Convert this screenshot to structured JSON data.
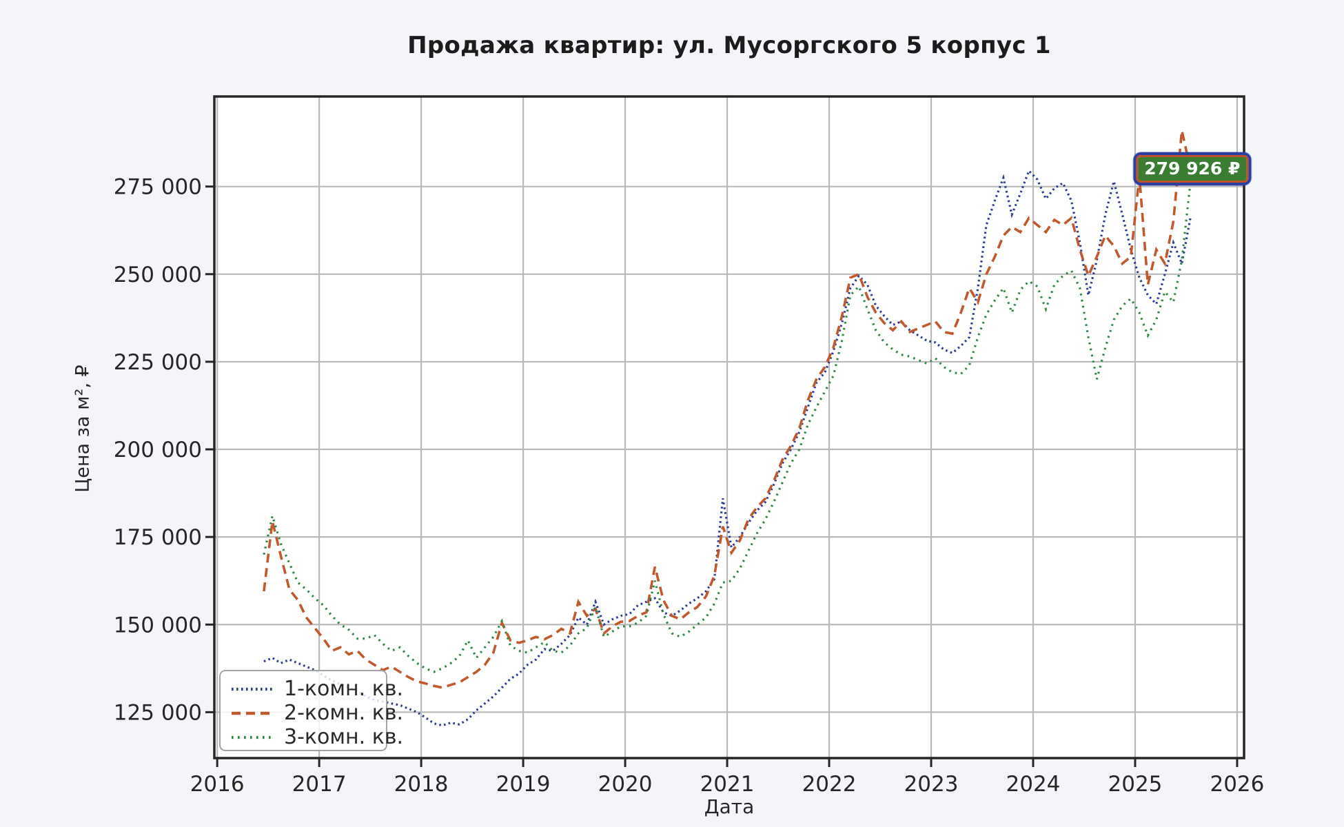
{
  "figure": {
    "background": "#f4f5f9",
    "plot_background": "#ffffff",
    "grid_color": "#b9b9b9",
    "spine_color": "#262626",
    "tick_text_color": "#262626"
  },
  "chart_data": {
    "type": "line",
    "title": "Продажа квартир: ул. Мусоргского 5 корпус 1",
    "xlabel": "Дата",
    "ylabel": "Цена за м², ₽",
    "grid": true,
    "legend_position": "lower-left",
    "xlim": [
      2015.972,
      2026.068
    ],
    "ylim": [
      111900,
      300700
    ],
    "x_ticks": [
      2016,
      2017,
      2018,
      2019,
      2020,
      2021,
      2022,
      2023,
      2024,
      2025,
      2026
    ],
    "y_ticks": [
      125000,
      150000,
      175000,
      200000,
      225000,
      250000,
      275000
    ],
    "y_tick_labels": [
      "125 000",
      "150 000",
      "175 000",
      "200 000",
      "225 000",
      "250 000",
      "275 000"
    ],
    "x_start": 2016.458,
    "x_step": 0.0833333,
    "series": [
      {
        "name": "1-комн. кв.",
        "color": "#2c3e94",
        "style": "dotted",
        "dash": "2.6 4.4",
        "width": 3.2,
        "values": [
          139500,
          140500,
          139000,
          140000,
          139000,
          138000,
          137000,
          135500,
          134000,
          133000,
          132000,
          131000,
          129500,
          128500,
          128000,
          127500,
          127000,
          126000,
          125000,
          123500,
          121800,
          121200,
          122000,
          121500,
          123000,
          125500,
          127500,
          129500,
          132000,
          134500,
          136000,
          138500,
          140000,
          143000,
          142500,
          144500,
          147000,
          152000,
          150000,
          156500,
          150000,
          151500,
          152500,
          153000,
          155500,
          156500,
          157500,
          153500,
          152500,
          154000,
          156000,
          157500,
          159500,
          163000,
          186000,
          172000,
          175000,
          179000,
          182500,
          185000,
          190000,
          196000,
          200000,
          205000,
          212000,
          219000,
          222000,
          228000,
          236000,
          246000,
          249500,
          247000,
          241000,
          238000,
          235500,
          236500,
          234000,
          232500,
          231000,
          230500,
          228500,
          227500,
          229500,
          232000,
          246000,
          264000,
          271000,
          277500,
          267000,
          273000,
          279500,
          277000,
          271500,
          274500,
          276000,
          271000,
          259000,
          244000,
          254000,
          267000,
          276500,
          267000,
          257000,
          249000,
          244000,
          241500,
          250000,
          259000,
          253000,
          266000
        ]
      },
      {
        "name": "2-комн. кв.",
        "color": "#c05a2e",
        "style": "dashed",
        "dash": "13 8",
        "width": 3.6,
        "values": [
          159500,
          179500,
          169500,
          160000,
          157000,
          152000,
          149000,
          146000,
          142500,
          143500,
          141500,
          142500,
          140000,
          138500,
          137000,
          138000,
          136500,
          135000,
          133800,
          133200,
          132500,
          132000,
          132800,
          133500,
          135000,
          136500,
          138500,
          142000,
          150500,
          145500,
          144800,
          145500,
          146500,
          145800,
          147000,
          148800,
          147500,
          156500,
          152500,
          154500,
          147500,
          149500,
          150800,
          151000,
          152500,
          153500,
          166500,
          157000,
          152500,
          151500,
          153500,
          155000,
          158000,
          164000,
          178000,
          170500,
          174000,
          180000,
          183500,
          186000,
          191000,
          197000,
          201000,
          206000,
          214000,
          220000,
          223500,
          229000,
          238000,
          249000,
          250000,
          243500,
          239000,
          236000,
          234000,
          236500,
          233500,
          234500,
          235500,
          236500,
          233500,
          233000,
          239000,
          246000,
          242000,
          250000,
          255000,
          261000,
          263500,
          262000,
          266000,
          264000,
          262000,
          265500,
          264000,
          266000,
          257000,
          249500,
          255000,
          261000,
          258000,
          253000,
          255000,
          278000,
          247000,
          257000,
          253000,
          265000,
          291000,
          280000
        ]
      },
      {
        "name": "3-комн. кв.",
        "color": "#2f8844",
        "style": "dotted",
        "dash": "2.6 6.4",
        "width": 3.2,
        "values": [
          170000,
          181000,
          173000,
          167500,
          162000,
          160000,
          157500,
          155500,
          152500,
          150000,
          148500,
          146000,
          146000,
          147000,
          144500,
          142500,
          143500,
          141000,
          139000,
          137500,
          136500,
          137500,
          139000,
          141000,
          145500,
          140500,
          143500,
          146500,
          151000,
          144000,
          142500,
          142000,
          143500,
          145000,
          142500,
          142000,
          144000,
          147500,
          149000,
          155000,
          146500,
          148000,
          149500,
          149500,
          150500,
          152500,
          162500,
          153000,
          147500,
          146500,
          148000,
          150000,
          152000,
          156000,
          162000,
          162500,
          166000,
          171000,
          176000,
          180000,
          185000,
          190500,
          196000,
          200000,
          207000,
          212000,
          216500,
          221000,
          231000,
          244000,
          246500,
          240000,
          234000,
          230500,
          228500,
          227000,
          226500,
          225500,
          224500,
          226000,
          223500,
          222000,
          221500,
          224000,
          232000,
          238500,
          242500,
          246000,
          239000,
          245500,
          248000,
          246500,
          240000,
          247000,
          249500,
          251000,
          246000,
          232000,
          220000,
          229000,
          237000,
          241000,
          243000,
          239000,
          232500,
          237000,
          245000,
          242000,
          254000,
          276000
        ]
      }
    ],
    "annotation": {
      "text": "279 926 ₽",
      "x": 2025.56,
      "y": 280000,
      "fill": "#3b7c33",
      "border_inner": "#c0512b",
      "border_outer": "#2b3f9e",
      "text_color": "#ffffff"
    }
  }
}
